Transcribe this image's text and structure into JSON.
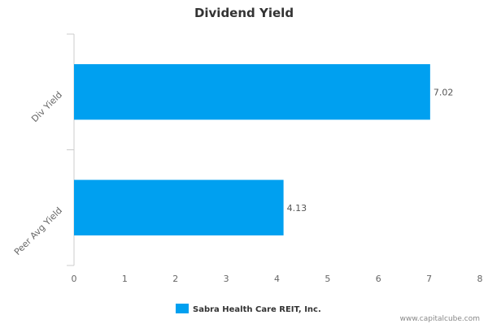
{
  "chart_data": {
    "type": "bar",
    "orientation": "horizontal",
    "title": "Dividend Yield",
    "categories": [
      "Div Yield",
      "Peer Avg Yield"
    ],
    "series": [
      {
        "name": "Sabra Health Care REIT, Inc.",
        "values": [
          7.02,
          4.13
        ],
        "color": "#00a0f0"
      }
    ],
    "data_labels": [
      "7.02",
      "4.13"
    ],
    "xlim": [
      0,
      8
    ],
    "xticks": [
      "0",
      "1",
      "2",
      "3",
      "4",
      "5",
      "6",
      "7",
      "8"
    ],
    "grid": false,
    "legend_position": "bottom"
  },
  "watermark": "www.capitalcube.com"
}
